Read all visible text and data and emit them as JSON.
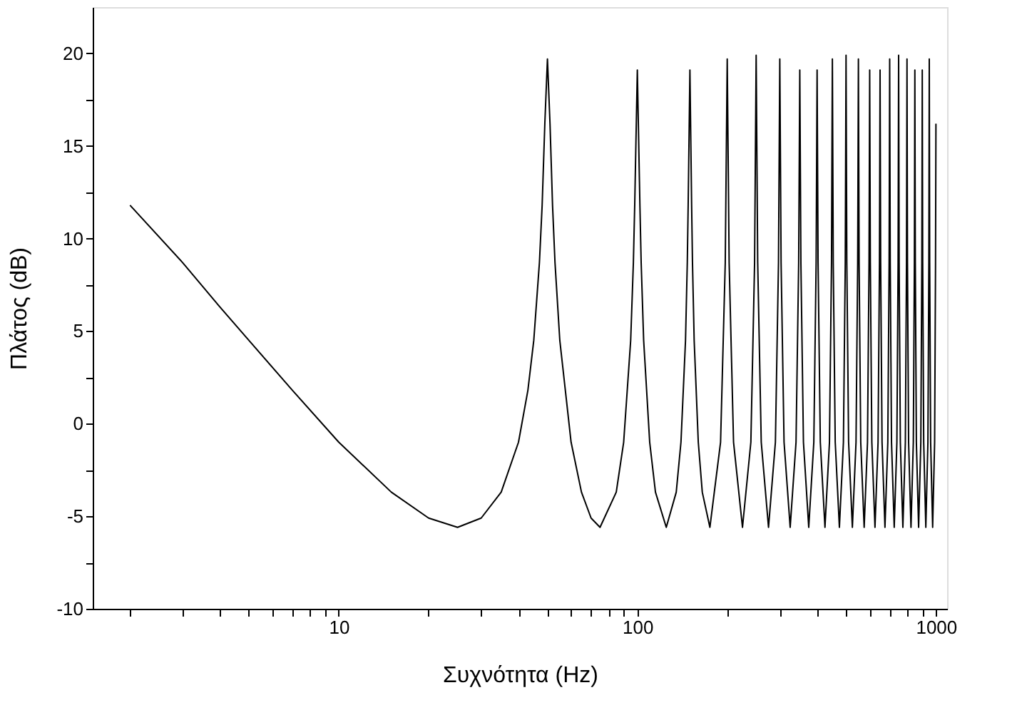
{
  "chart_data": {
    "type": "line",
    "xlabel": "Συχνότητα (Hz)",
    "ylabel": "Πλάτος (dB)",
    "log": "x",
    "grid": false,
    "marker": "none",
    "line_style": "solid",
    "xlim": [
      1.5,
      1090
    ],
    "ylim": [
      -10,
      22.5
    ],
    "xticks": [
      {
        "value": 2,
        "label": null
      },
      {
        "value": 3,
        "label": null
      },
      {
        "value": 4,
        "label": null
      },
      {
        "value": 5,
        "label": null
      },
      {
        "value": 6,
        "label": null
      },
      {
        "value": 7,
        "label": null
      },
      {
        "value": 8,
        "label": null
      },
      {
        "value": 9,
        "label": null
      },
      10,
      {
        "value": 20,
        "label": null
      },
      {
        "value": 30,
        "label": null
      },
      {
        "value": 40,
        "label": null
      },
      {
        "value": 50,
        "label": null
      },
      {
        "value": 60,
        "label": null
      },
      {
        "value": 70,
        "label": null
      },
      {
        "value": 80,
        "label": null
      },
      {
        "value": 90,
        "label": null
      },
      100,
      {
        "value": 200,
        "label": null
      },
      {
        "value": 300,
        "label": null
      },
      {
        "value": 400,
        "label": null
      },
      {
        "value": 500,
        "label": null
      },
      {
        "value": 600,
        "label": null
      },
      {
        "value": 700,
        "label": null
      },
      {
        "value": 800,
        "label": null
      },
      {
        "value": 900,
        "label": null
      },
      1000
    ],
    "yticks": [
      -10,
      {
        "value": -7.5,
        "label": null
      },
      -5,
      {
        "value": -2.5,
        "label": null
      },
      0,
      {
        "value": 2.5,
        "label": null
      },
      5,
      {
        "value": 7.5,
        "label": null
      },
      10,
      {
        "value": 12.5,
        "label": null
      },
      15,
      {
        "value": 17.5,
        "label": null
      },
      20
    ],
    "series": [
      {
        "color": "#000000",
        "x": [
          2,
          3,
          4,
          5,
          7,
          10,
          15,
          20,
          25,
          30,
          35,
          40,
          43,
          45,
          47,
          48,
          49,
          50,
          51,
          52,
          53,
          55,
          60,
          65,
          70,
          75,
          85,
          90,
          95,
          97,
          98,
          100,
          102,
          103,
          105,
          110,
          115,
          125,
          135,
          140,
          145,
          147,
          148,
          150,
          152,
          153,
          155,
          160,
          165,
          175,
          190,
          197,
          200,
          203,
          210,
          225,
          240,
          247,
          250,
          253,
          260,
          275,
          290,
          297,
          300,
          303,
          310,
          325,
          340,
          347,
          350,
          353,
          360,
          375,
          390,
          397,
          400,
          403,
          410,
          425,
          440,
          447,
          450,
          453,
          460,
          475,
          490,
          497,
          500,
          503,
          510,
          525,
          540,
          547,
          550,
          553,
          560,
          575,
          590,
          597,
          600,
          603,
          610,
          625,
          640,
          647,
          650,
          653,
          660,
          675,
          690,
          697,
          700,
          703,
          710,
          725,
          740,
          747,
          750,
          753,
          760,
          775,
          790,
          797,
          800,
          803,
          810,
          825,
          840,
          847,
          850,
          853,
          860,
          875,
          890,
          897,
          900,
          903,
          910,
          925,
          940,
          947,
          950,
          953,
          960,
          975,
          990,
          997,
          1000
        ],
        "values": [
          11.8,
          8.7,
          6.3,
          4.5,
          1.8,
          -1.0,
          -3.7,
          -5.1,
          -5.6,
          -5.1,
          -3.7,
          -1.0,
          1.8,
          4.5,
          8.7,
          11.8,
          16.2,
          19.7,
          16.2,
          11.8,
          8.7,
          4.5,
          -1.0,
          -3.7,
          -5.1,
          -5.6,
          -3.7,
          -1.0,
          4.5,
          8.7,
          11.8,
          19.1,
          11.8,
          8.7,
          4.5,
          -1.0,
          -3.7,
          -5.6,
          -3.7,
          -1.0,
          4.5,
          8.7,
          11.8,
          19.1,
          11.8,
          8.7,
          4.5,
          -1.0,
          -3.7,
          -5.6,
          -1.0,
          8.7,
          19.7,
          8.7,
          -1.0,
          -5.6,
          -1.0,
          8.7,
          19.9,
          8.7,
          -1.0,
          -5.6,
          -1.0,
          8.7,
          19.7,
          8.7,
          -1.0,
          -5.6,
          -1.0,
          8.7,
          19.1,
          8.7,
          -1.0,
          -5.6,
          -1.0,
          8.7,
          19.1,
          8.7,
          -1.0,
          -5.6,
          -1.0,
          8.7,
          19.7,
          8.7,
          -1.0,
          -5.6,
          -1.0,
          8.7,
          19.9,
          8.7,
          -1.0,
          -5.6,
          -1.0,
          8.7,
          19.7,
          8.7,
          -1.0,
          -5.6,
          -1.0,
          8.7,
          19.1,
          8.7,
          -1.0,
          -5.6,
          -1.0,
          8.7,
          19.1,
          8.7,
          -1.0,
          -5.6,
          -1.0,
          8.7,
          19.7,
          8.7,
          -1.0,
          -5.6,
          -1.0,
          8.7,
          19.9,
          8.7,
          -1.0,
          -5.6,
          -1.0,
          8.7,
          19.7,
          8.7,
          -1.0,
          -5.6,
          -1.0,
          8.7,
          19.1,
          8.7,
          -1.0,
          -5.6,
          -1.0,
          8.7,
          19.1,
          8.7,
          -1.0,
          -5.6,
          -1.0,
          8.7,
          19.7,
          8.7,
          -1.0,
          -5.6,
          -1.0,
          8.7,
          16.2
        ]
      }
    ]
  }
}
